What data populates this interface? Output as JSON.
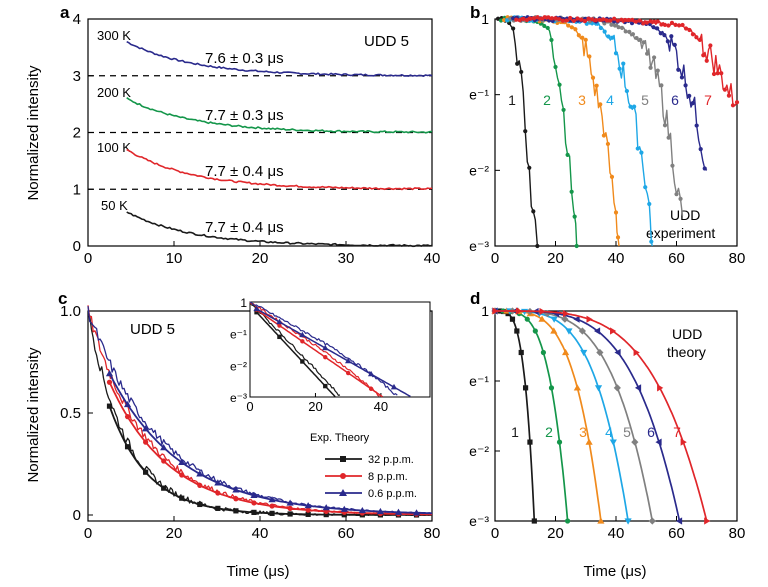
{
  "panel_labels": [
    "a",
    "b",
    "c",
    "d"
  ],
  "colors": {
    "axis": "#000000",
    "black": "#1a1a1a",
    "red": "#e0262a",
    "green": "#14964a",
    "orange": "#f08a1c",
    "cyan": "#1ea7e6",
    "grey": "#808080",
    "navy": "#2a2a8c",
    "dashed": "#000000"
  },
  "chart_data": [
    {
      "panel": "a",
      "type": "line",
      "title": "UDD 5",
      "xlabel": "",
      "ylabel": "Normalized intensity",
      "xlim": [
        0,
        40
      ],
      "ylim": [
        0,
        4
      ],
      "x_ticks": [
        "0",
        "10",
        "20",
        "30",
        "40"
      ],
      "y_ticks": [
        "0",
        "1",
        "2",
        "3",
        "4"
      ],
      "reference_lines": [
        1,
        2,
        3
      ],
      "series": [
        {
          "name": "300 K",
          "color_key": "navy",
          "offset": 3,
          "amplitude": 0.6,
          "tau": 7.6,
          "x_start": 4.5,
          "fit": "7.6 ± 0.3 μs"
        },
        {
          "name": "200 K",
          "color_key": "green",
          "offset": 2,
          "amplitude": 0.6,
          "tau": 7.7,
          "x_start": 4.5,
          "fit": "7.7 ± 0.3 μs"
        },
        {
          "name": "100 K",
          "color_key": "red",
          "offset": 1,
          "amplitude": 0.7,
          "tau": 7.7,
          "x_start": 4.5,
          "fit": "7.7 ± 0.4 μs"
        },
        {
          "name": "50 K",
          "color_key": "black",
          "offset": 0,
          "amplitude": 0.6,
          "tau": 7.7,
          "x_start": 4.5,
          "fit": "7.7 ± 0.4 μs"
        }
      ]
    },
    {
      "panel": "b",
      "type": "line",
      "scale": "log",
      "xlim": [
        0,
        80
      ],
      "ylim_log": [
        -3,
        0
      ],
      "x_ticks": [
        "0",
        "20",
        "40",
        "60",
        "80"
      ],
      "y_ticks": [
        "1",
        "e⁻¹",
        "e⁻²",
        "e⁻³"
      ],
      "annotation": [
        "UDD",
        "experiment"
      ],
      "series": [
        {
          "name": "1",
          "color_key": "black",
          "x": [
            1,
            4,
            6,
            8,
            10,
            12,
            14
          ],
          "lnI": [
            0,
            -0.02,
            -0.15,
            -0.6,
            -1.4,
            -2.4,
            -3
          ]
        },
        {
          "name": "2",
          "color_key": "green",
          "x": [
            2,
            8,
            14,
            18,
            20,
            22,
            24,
            26,
            27
          ],
          "lnI": [
            0,
            0,
            -0.02,
            -0.15,
            -0.5,
            -1.0,
            -1.7,
            -2.5,
            -3
          ]
        },
        {
          "name": "3",
          "color_key": "orange",
          "x": [
            3,
            10,
            20,
            26,
            30,
            33,
            36,
            38,
            40,
            41
          ],
          "lnI": [
            0,
            0,
            -0.02,
            -0.1,
            -0.4,
            -0.9,
            -1.4,
            -2.0,
            -2.6,
            -3
          ]
        },
        {
          "name": "4",
          "color_key": "cyan",
          "x": [
            4,
            15,
            28,
            35,
            40,
            43,
            46,
            49,
            51,
            52
          ],
          "lnI": [
            0,
            0,
            -0.02,
            -0.1,
            -0.4,
            -0.8,
            -1.3,
            -1.9,
            -2.5,
            -3
          ]
        },
        {
          "name": "5",
          "color_key": "grey",
          "x": [
            5,
            20,
            35,
            42,
            48,
            52,
            55,
            58,
            60,
            62
          ],
          "lnI": [
            0,
            0,
            -0.02,
            -0.1,
            -0.3,
            -0.6,
            -1.0,
            -1.6,
            -2.2,
            -2.6
          ]
        },
        {
          "name": "6",
          "color_key": "navy",
          "x": [
            6,
            25,
            40,
            50,
            56,
            60,
            63,
            66,
            68,
            70
          ],
          "lnI": [
            0,
            0,
            -0.02,
            -0.05,
            -0.2,
            -0.45,
            -0.8,
            -1.2,
            -1.6,
            -2.0
          ]
        },
        {
          "name": "7",
          "color_key": "red",
          "x": [
            7,
            20,
            40,
            55,
            62,
            66,
            70,
            73,
            76,
            78,
            80
          ],
          "lnI": [
            0,
            0,
            -0.02,
            -0.05,
            -0.1,
            -0.2,
            -0.4,
            -0.6,
            -0.85,
            -1.0,
            -1.1
          ]
        }
      ]
    },
    {
      "panel": "c",
      "type": "line",
      "title": "UDD 5",
      "xlabel": "Time (μs)",
      "ylabel": "Normalized intensity",
      "xlim": [
        0,
        80
      ],
      "ylim": [
        0,
        1.0
      ],
      "x_ticks": [
        "0",
        "20",
        "40",
        "60",
        "80"
      ],
      "y_ticks": [
        "0",
        "0.5",
        "1.0"
      ],
      "legend_title": "Exp. Theory",
      "series": [
        {
          "name": "32 p.p.m.",
          "color_key": "black",
          "tau": 9
        },
        {
          "name": "8 p.p.m.",
          "color_key": "red",
          "tau": 14
        },
        {
          "name": "0.6 p.p.m.",
          "color_key": "navy",
          "tau": 17
        }
      ],
      "inset": {
        "xlim": [
          0,
          55
        ],
        "ylim_log": [
          -3,
          0
        ],
        "x_ticks": [
          "0",
          "20",
          "40"
        ],
        "y_ticks": [
          "1",
          "e⁻¹",
          "e⁻²",
          "e⁻³"
        ]
      }
    },
    {
      "panel": "d",
      "type": "line",
      "scale": "log",
      "xlabel": "Time (μs)",
      "xlim": [
        0,
        80
      ],
      "ylim_log": [
        -3,
        0
      ],
      "x_ticks": [
        "0",
        "20",
        "40",
        "60",
        "80"
      ],
      "y_ticks": [
        "1",
        "e⁻¹",
        "e⁻²",
        "e⁻³"
      ],
      "annotation": [
        "UDD",
        "theory"
      ],
      "series": [
        {
          "name": "1",
          "color_key": "black",
          "T": 13
        },
        {
          "name": "2",
          "color_key": "green",
          "T": 24
        },
        {
          "name": "3",
          "color_key": "orange",
          "T": 35
        },
        {
          "name": "4",
          "color_key": "cyan",
          "T": 44
        },
        {
          "name": "5",
          "color_key": "grey",
          "T": 52
        },
        {
          "name": "6",
          "color_key": "navy",
          "T": 61
        },
        {
          "name": "7",
          "color_key": "red",
          "T": 70
        }
      ]
    }
  ]
}
